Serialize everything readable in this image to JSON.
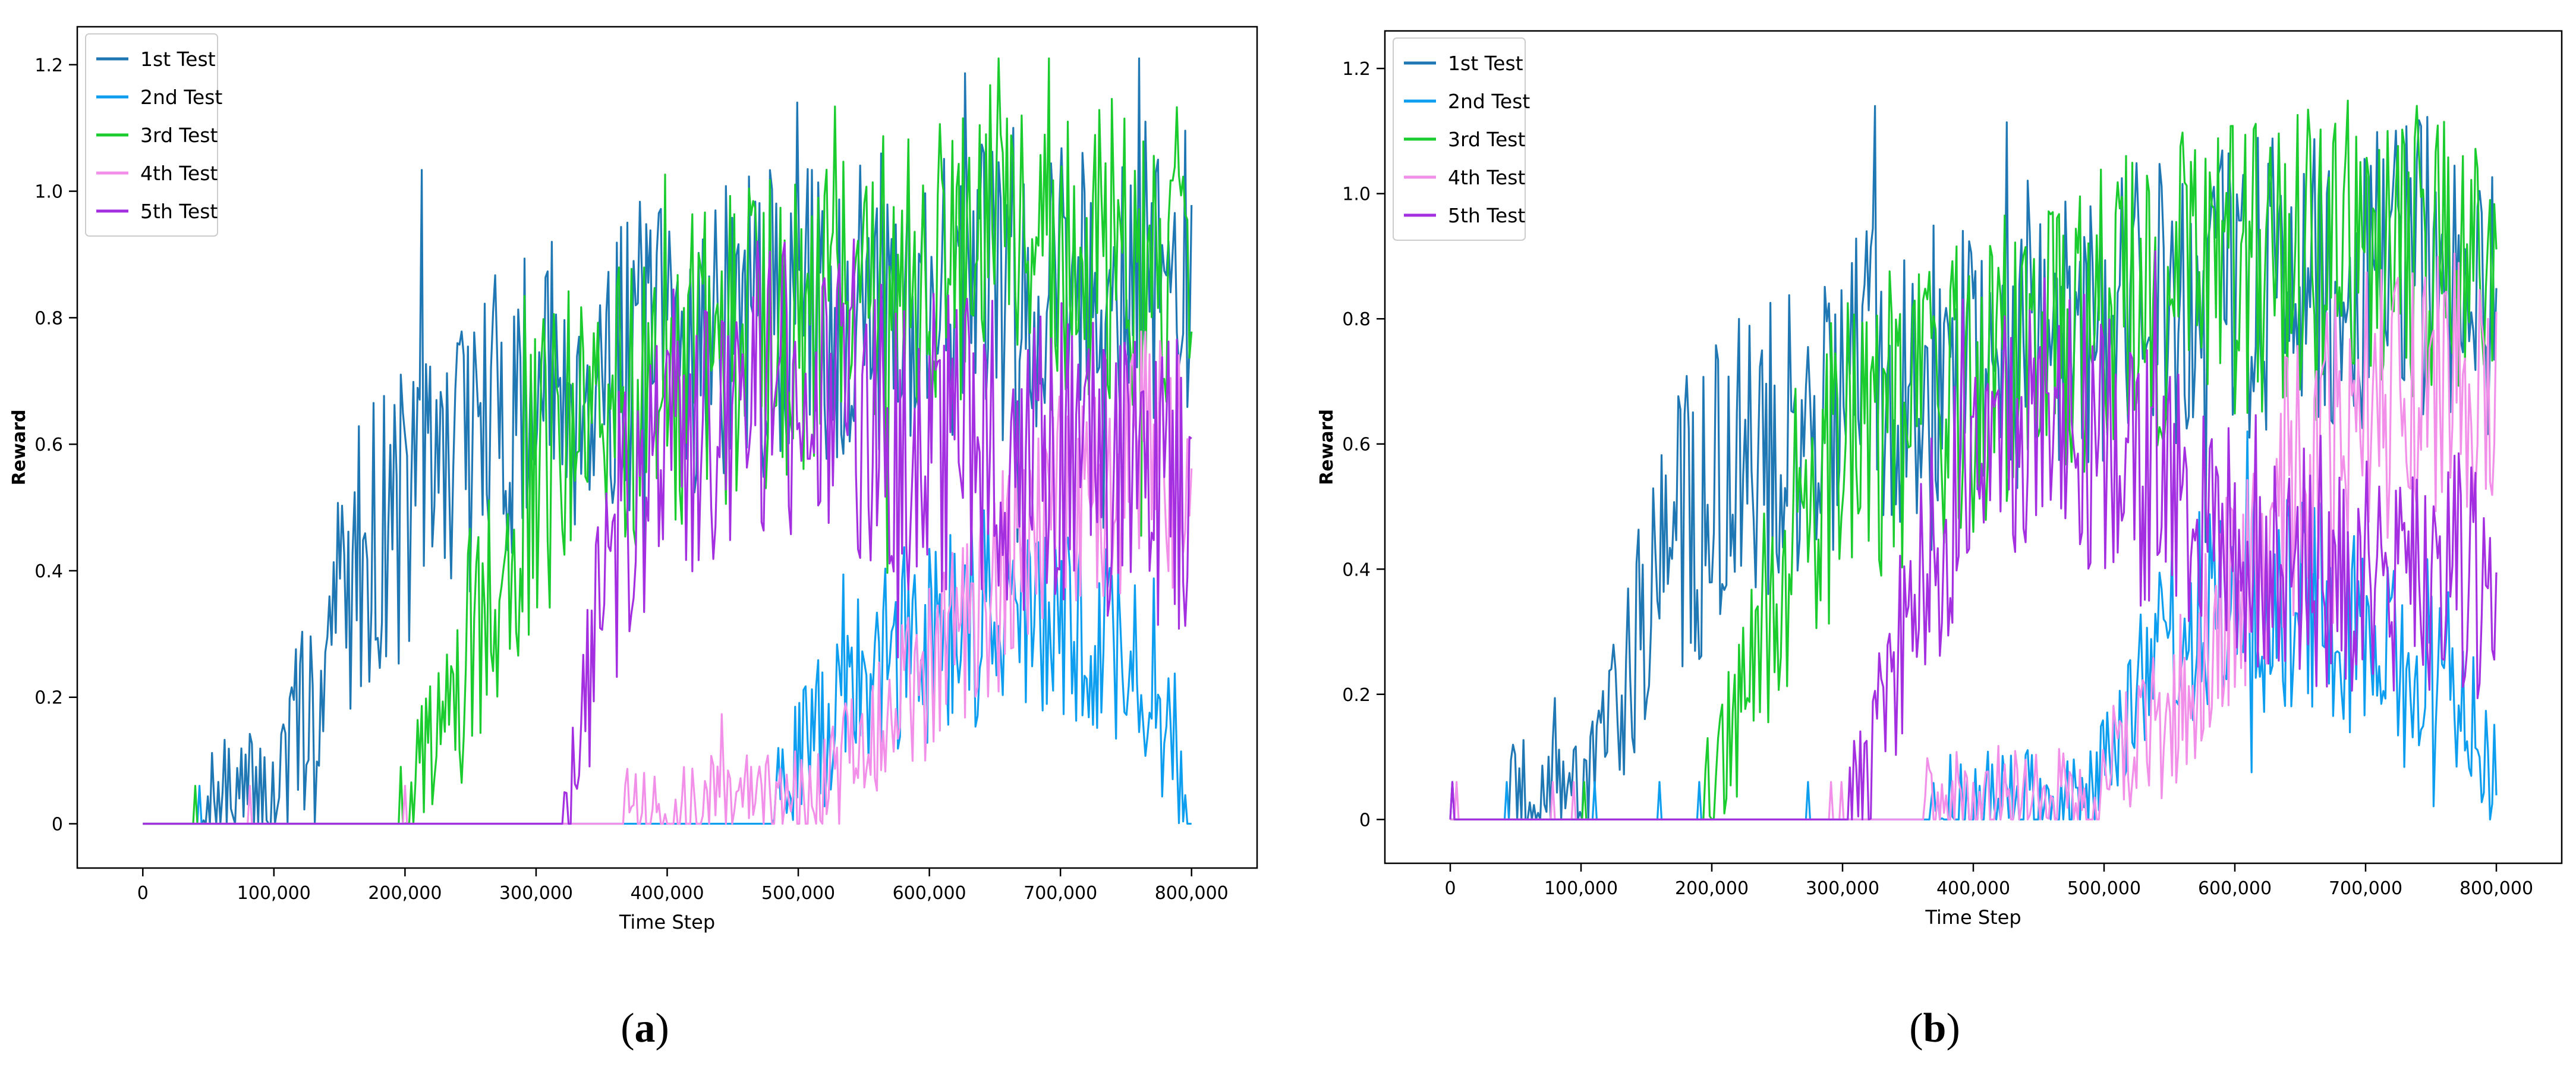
{
  "chart_data": [
    {
      "panel_label": "a",
      "type": "line",
      "xlabel": "Time Step",
      "ylabel": "Reward",
      "xlim": [
        -50000,
        850000
      ],
      "ylim": [
        -0.07,
        1.26
      ],
      "xticks": [
        0,
        100000,
        200000,
        300000,
        400000,
        500000,
        600000,
        700000,
        800000
      ],
      "xtick_labels": [
        "0",
        "100,000",
        "200,000",
        "300,000",
        "400,000",
        "500,000",
        "600,000",
        "700,000",
        "800,000"
      ],
      "yticks": [
        0,
        0.2,
        0.4,
        0.6,
        0.8,
        1.0,
        1.2
      ],
      "ytick_labels": [
        "0",
        "0.2",
        "0.4",
        "0.6",
        "0.8",
        "1.0",
        "1.2"
      ],
      "legend": "top-left",
      "grid": false,
      "noise_seed": 7,
      "series": [
        {
          "name": "1st Test",
          "color": "#1f77b4",
          "x": [
            0,
            60000,
            100000,
            130000,
            150000,
            170000,
            200000,
            230000,
            260000,
            290000,
            320000,
            350000,
            400000,
            450000,
            500000,
            550000,
            600000,
            650000,
            700000,
            750000,
            800000
          ],
          "y": [
            0.0,
            0.02,
            0.05,
            0.2,
            0.35,
            0.45,
            0.5,
            0.58,
            0.62,
            0.68,
            0.7,
            0.72,
            0.75,
            0.78,
            0.8,
            0.82,
            0.85,
            0.85,
            0.87,
            0.88,
            0.85
          ],
          "jitter": 0.11
        },
        {
          "name": "2nd Test",
          "color": "#0d9ef0",
          "x": [
            0,
            480000,
            500000,
            520000,
            540000,
            560000,
            600000,
            650000,
            700000,
            750000,
            780000,
            800000
          ],
          "y": [
            0.0,
            0.01,
            0.1,
            0.15,
            0.2,
            0.25,
            0.3,
            0.35,
            0.3,
            0.28,
            0.15,
            0.05
          ],
          "jitter": 0.1
        },
        {
          "name": "3rd Test",
          "color": "#1bcc2f",
          "x": [
            0,
            190000,
            210000,
            240000,
            270000,
            300000,
            350000,
            400000,
            450000,
            500000,
            550000,
            600000,
            650000,
            700000,
            750000,
            800000
          ],
          "y": [
            0.0,
            0.0,
            0.05,
            0.2,
            0.4,
            0.55,
            0.65,
            0.7,
            0.75,
            0.8,
            0.85,
            0.88,
            0.9,
            0.9,
            0.9,
            0.9
          ],
          "jitter": 0.11
        },
        {
          "name": "4th Test",
          "color": "#f290e9",
          "x": [
            0,
            490000,
            520000,
            550000,
            580000,
            620000,
            660000,
            700000,
            740000,
            770000,
            800000
          ],
          "y": [
            0.0,
            0.02,
            0.05,
            0.12,
            0.2,
            0.3,
            0.4,
            0.5,
            0.55,
            0.6,
            0.55
          ],
          "jitter": 0.09
        },
        {
          "name": "5th Test",
          "color": "#a32fe0",
          "x": [
            0,
            320000,
            340000,
            360000,
            400000,
            450000,
            500000,
            550000,
            600000,
            650000,
            700000,
            750000,
            800000
          ],
          "y": [
            0.0,
            0.0,
            0.2,
            0.45,
            0.6,
            0.68,
            0.7,
            0.65,
            0.6,
            0.58,
            0.58,
            0.56,
            0.55
          ],
          "jitter": 0.11
        }
      ]
    },
    {
      "panel_label": "b",
      "type": "line",
      "xlabel": "Time Step",
      "ylabel": "Reward",
      "xlim": [
        -50000,
        850000
      ],
      "ylim": [
        -0.07,
        1.26
      ],
      "xticks": [
        0,
        100000,
        200000,
        300000,
        400000,
        500000,
        600000,
        700000,
        800000
      ],
      "xtick_labels": [
        "0",
        "100,000",
        "200,000",
        "300,000",
        "400,000",
        "500,000",
        "600,000",
        "700,000",
        "800,000"
      ],
      "yticks": [
        0,
        0.2,
        0.4,
        0.6,
        0.8,
        1.0,
        1.2
      ],
      "ytick_labels": [
        "0",
        "0.2",
        "0.4",
        "0.6",
        "0.8",
        "1.0",
        "1.2"
      ],
      "legend": "top-left",
      "grid": false,
      "noise_seed": 19,
      "series": [
        {
          "name": "1st Test",
          "color": "#1f77b4",
          "x": [
            0,
            60000,
            100000,
            130000,
            150000,
            170000,
            200000,
            230000,
            260000,
            290000,
            320000,
            350000,
            400000,
            450000,
            500000,
            550000,
            600000,
            650000,
            700000,
            750000,
            800000
          ],
          "y": [
            0.0,
            0.02,
            0.06,
            0.22,
            0.35,
            0.45,
            0.52,
            0.58,
            0.62,
            0.66,
            0.7,
            0.72,
            0.75,
            0.78,
            0.8,
            0.82,
            0.85,
            0.85,
            0.87,
            0.88,
            0.8
          ],
          "jitter": 0.11
        },
        {
          "name": "2nd Test",
          "color": "#0d9ef0",
          "x": [
            0,
            490000,
            510000,
            530000,
            560000,
            600000,
            650000,
            700000,
            750000,
            780000,
            800000
          ],
          "y": [
            0.0,
            0.02,
            0.1,
            0.2,
            0.3,
            0.35,
            0.35,
            0.3,
            0.28,
            0.15,
            0.05
          ],
          "jitter": 0.1
        },
        {
          "name": "3rd Test",
          "color": "#1bcc2f",
          "x": [
            0,
            190000,
            210000,
            240000,
            270000,
            300000,
            350000,
            400000,
            450000,
            500000,
            550000,
            600000,
            650000,
            700000,
            750000,
            800000
          ],
          "y": [
            0.0,
            0.0,
            0.08,
            0.3,
            0.5,
            0.58,
            0.65,
            0.7,
            0.75,
            0.8,
            0.85,
            0.88,
            0.9,
            0.9,
            0.9,
            0.95
          ],
          "jitter": 0.11
        },
        {
          "name": "4th Test",
          "color": "#f290e9",
          "x": [
            0,
            480000,
            520000,
            550000,
            580000,
            620000,
            660000,
            700000,
            740000,
            770000,
            800000
          ],
          "y": [
            0.0,
            0.02,
            0.1,
            0.18,
            0.3,
            0.45,
            0.6,
            0.65,
            0.7,
            0.7,
            0.65
          ],
          "jitter": 0.1
        },
        {
          "name": "5th Test",
          "color": "#a32fe0",
          "x": [
            0,
            300000,
            330000,
            360000,
            400000,
            450000,
            500000,
            550000,
            600000,
            650000,
            700000,
            750000,
            800000
          ],
          "y": [
            0.0,
            0.0,
            0.15,
            0.4,
            0.6,
            0.68,
            0.6,
            0.5,
            0.45,
            0.42,
            0.4,
            0.4,
            0.38
          ],
          "jitter": 0.1
        }
      ]
    }
  ]
}
